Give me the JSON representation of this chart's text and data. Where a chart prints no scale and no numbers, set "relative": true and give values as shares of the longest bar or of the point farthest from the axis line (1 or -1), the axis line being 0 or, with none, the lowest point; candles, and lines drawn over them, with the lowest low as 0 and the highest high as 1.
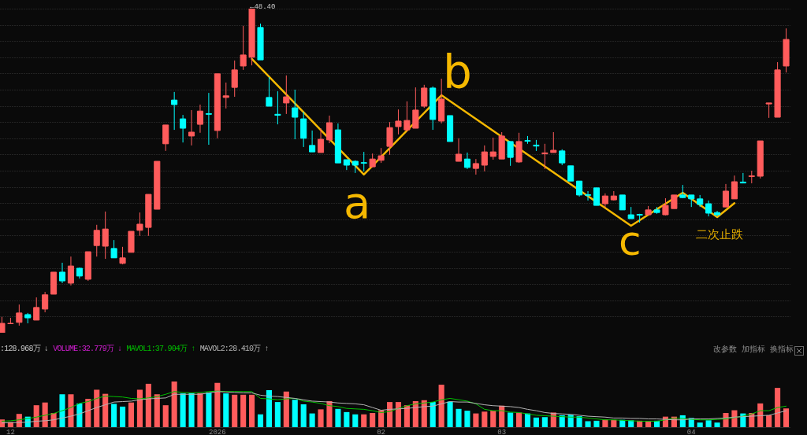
{
  "chart_data": [
    {
      "type": "candlestick",
      "relative": true,
      "grid": "y",
      "categories": [
        null,
        null,
        null,
        null,
        null,
        null,
        null,
        null,
        null,
        null,
        null,
        null,
        null,
        null,
        null,
        null,
        null,
        null,
        null,
        null,
        null,
        null,
        null,
        null,
        null,
        null,
        null,
        null,
        null,
        null,
        null,
        null,
        null,
        null,
        null,
        null,
        null,
        null,
        null,
        null,
        null,
        null,
        null,
        null,
        null,
        null,
        null,
        null,
        null,
        null,
        null,
        null,
        null,
        null,
        null,
        null,
        null,
        null,
        null,
        null,
        null,
        null,
        null,
        null,
        null,
        null,
        null,
        null,
        null,
        null,
        null,
        null,
        null,
        null,
        null,
        null,
        null,
        null,
        null,
        null,
        null,
        null,
        null,
        null,
        null,
        null,
        null,
        null,
        null,
        null,
        null,
        null
      ],
      "ohlc": [
        [
          0,
          0.049,
          0,
          0.029
        ],
        [
          0.028,
          0.046,
          0.027,
          0.029
        ],
        [
          0.032,
          0.087,
          0.022,
          0.061
        ],
        [
          0.056,
          0.061,
          0.029,
          0.046
        ],
        [
          0.039,
          0.109,
          0.039,
          0.078
        ],
        [
          0.073,
          0.126,
          0.063,
          0.117
        ],
        [
          0.119,
          0.187,
          0.119,
          0.187
        ],
        [
          0.187,
          0.216,
          0.153,
          0.16
        ],
        [
          0.153,
          0.235,
          0.146,
          0.206
        ],
        [
          0.199,
          0.201,
          0.167,
          0.175
        ],
        [
          0.165,
          0.25,
          0.16,
          0.25
        ],
        [
          0.269,
          0.333,
          0.235,
          0.316
        ],
        [
          0.267,
          0.374,
          0.228,
          0.32
        ],
        [
          0.26,
          0.286,
          0.231,
          0.231
        ],
        [
          0.214,
          0.265,
          0.211,
          0.231
        ],
        [
          0.248,
          0.313,
          0.248,
          0.313
        ],
        [
          0.316,
          0.371,
          0.299,
          0.335
        ],
        [
          0.325,
          0.427,
          0.299,
          0.427
        ],
        [
          0.381,
          0.529,
          0.381,
          0.529
        ],
        [
          0.583,
          0.641,
          0.561,
          0.641
        ],
        [
          0.718,
          0.743,
          0.626,
          0.704
        ],
        [
          0.66,
          0.672,
          0.587,
          0.631
        ],
        [
          0.607,
          0.687,
          0.578,
          0.619
        ],
        [
          0.643,
          0.704,
          0.617,
          0.684
        ],
        [
          0.676,
          0.74,
          0.58,
          0.674
        ],
        [
          0.624,
          0.799,
          0.6,
          0.799
        ],
        [
          0.726,
          0.772,
          0.692,
          0.731
        ],
        [
          0.757,
          0.84,
          0.728,
          0.811
        ],
        [
          0.823,
          0.947,
          0.811,
          0.857
        ],
        [
          0.85,
          1,
          0.825,
          1
        ],
        [
          0.942,
          0.954,
          0.842,
          0.842
        ],
        [
          0.726,
          0.789,
          0.699,
          0.699
        ],
        [
          0.674,
          0.745,
          0.643,
          0.671
        ],
        [
          0.709,
          0.794,
          0.675,
          0.728
        ],
        [
          0.694,
          0.75,
          0.597,
          0.665
        ],
        [
          0.66,
          0.682,
          0.573,
          0.6
        ],
        [
          0.578,
          0.624,
          0.558,
          0.558
        ],
        [
          0.556,
          0.631,
          0.556,
          0.597
        ],
        [
          0.595,
          0.67,
          0.585,
          0.648
        ],
        [
          0.626,
          0.646,
          0.524,
          0.524
        ],
        [
          0.534,
          0.534,
          0.502,
          0.517
        ],
        [
          0.529,
          0.532,
          0.493,
          0.517
        ],
        [
          0.525,
          0.558,
          0.498,
          0.523
        ],
        [
          0.512,
          0.553,
          0.51,
          0.536
        ],
        [
          0.532,
          0.57,
          0.524,
          0.546
        ],
        [
          0.575,
          0.65,
          0.549,
          0.633
        ],
        [
          0.636,
          0.689,
          0.612,
          0.653
        ],
        [
          0.626,
          0.714,
          0.621,
          0.655
        ],
        [
          0.631,
          0.757,
          0.631,
          0.687
        ],
        [
          0.699,
          0.765,
          0.694,
          0.755
        ],
        [
          0.755,
          0.76,
          0.626,
          0.658
        ],
        [
          0.653,
          0.784,
          0.646,
          0.721
        ],
        [
          0.67,
          0.67,
          0.59,
          0.59
        ],
        [
          0.529,
          0.6,
          0.529,
          0.551
        ],
        [
          0.536,
          0.556,
          0.505,
          0.51
        ],
        [
          0.507,
          0.536,
          0.488,
          0.522
        ],
        [
          0.517,
          0.578,
          0.498,
          0.558
        ],
        [
          0.544,
          0.602,
          0.534,
          0.558
        ],
        [
          0.536,
          0.619,
          0.536,
          0.607
        ],
        [
          0.59,
          0.59,
          0.515,
          0.541
        ],
        [
          0.527,
          0.617,
          0.524,
          0.59
        ],
        [
          0.593,
          0.607,
          0.583,
          0.591
        ],
        [
          0.579,
          0.595,
          0.561,
          0.576
        ],
        [
          0.552,
          0.583,
          0.505,
          0.555
        ],
        [
          0.556,
          0.619,
          0.556,
          0.563
        ],
        [
          0.561,
          0.566,
          0.517,
          0.524
        ],
        [
          0.515,
          0.515,
          0.468,
          0.468
        ],
        [
          0.468,
          0.468,
          0.42,
          0.425
        ],
        [
          0.426,
          0.437,
          0.408,
          0.424
        ],
        [
          0.447,
          0.447,
          0.393,
          0.393
        ],
        [
          0.398,
          0.43,
          0.386,
          0.422
        ],
        [
          0.41,
          0.437,
          0.408,
          0.422
        ],
        [
          0.425,
          0.425,
          0.379,
          0.379
        ],
        [
          0.364,
          0.388,
          0.352,
          0.352
        ],
        [
          0.365,
          0.367,
          0.34,
          0.363
        ],
        [
          0.364,
          0.391,
          0.364,
          0.379
        ],
        [
          0.379,
          0.388,
          0.367,
          0.371
        ],
        [
          0.364,
          0.415,
          0.362,
          0.393
        ],
        [
          0.383,
          0.425,
          0.383,
          0.425
        ],
        [
          0.425,
          0.456,
          0.415,
          0.417
        ],
        [
          0.425,
          0.425,
          0.388,
          0.413
        ],
        [
          0.413,
          0.425,
          0.388,
          0.396
        ],
        [
          0.398,
          0.408,
          0.359,
          0.369
        ],
        [
          0.371,
          0.376,
          0.359,
          0.364
        ],
        [
          0.388,
          0.459,
          0.388,
          0.437
        ],
        [
          0.413,
          0.485,
          0.413,
          0.466
        ],
        [
          0.465,
          0.493,
          0.461,
          0.462
        ],
        [
          0.482,
          0.5,
          0.461,
          0.484
        ],
        [
          0.483,
          0.592,
          0.476,
          0.592
        ],
        [
          0.706,
          0.709,
          0.663,
          0.709
        ],
        [
          0.665,
          0.835,
          0.665,
          0.811
        ],
        [
          0.823,
          0.939,
          0.803,
          0.905
        ]
      ],
      "colors": [
        "#ff5c5c",
        "#ff5c5c",
        "#ff5c5c",
        "#00ffff",
        "#ff5c5c",
        "#ff5c5c",
        "#ff5c5c",
        "#00ffff",
        "#ff5c5c",
        "#00ffff",
        "#ff5c5c",
        "#ff5c5c",
        "#ff5c5c",
        "#00ffff",
        "#ff5c5c",
        "#ff5c5c",
        "#ff5c5c",
        "#ff5c5c",
        "#ff5c5c",
        "#ff5c5c",
        "#00ffff",
        "#00ffff",
        "#ff5c5c",
        "#ff5c5c",
        "#00ffff",
        "#ff5c5c",
        "#ff5c5c",
        "#ff5c5c",
        "#ff5c5c",
        "#ff5c5c",
        "#00ffff",
        "#00ffff",
        "#00ffff",
        "#ff5c5c",
        "#00ffff",
        "#00ffff",
        "#00ffff",
        "#ff5c5c",
        "#ff5c5c",
        "#00ffff",
        "#00ffff",
        "#00ffff",
        "#00ffff",
        "#ff5c5c",
        "#ff5c5c",
        "#ff5c5c",
        "#ff5c5c",
        "#ff5c5c",
        "#ff5c5c",
        "#ff5c5c",
        "#00ffff",
        "#ff5c5c",
        "#00ffff",
        "#ff5c5c",
        "#00ffff",
        "#ff5c5c",
        "#ff5c5c",
        "#ff5c5c",
        "#ff5c5c",
        "#00ffff",
        "#ff5c5c",
        "#00ffff",
        "#00ffff",
        "#ff5c5c",
        "#ff5c5c",
        "#00ffff",
        "#00ffff",
        "#00ffff",
        "#00ffff",
        "#00ffff",
        "#ff5c5c",
        "#ff5c5c",
        "#00ffff",
        "#00ffff",
        "#00ffff",
        "#ff5c5c",
        "#00ffff",
        "#ff5c5c",
        "#ff5c5c",
        "#00ffff",
        "#00ffff",
        "#00ffff",
        "#00ffff",
        "#00ffff",
        "#ff5c5c",
        "#ff5c5c",
        "#00ffff",
        "#ff5c5c",
        "#ff5c5c",
        "#ff5c5c",
        "#ff5c5c",
        "#ff5c5c"
      ],
      "series": [
        {
          "type": "line",
          "color": "#f5b800",
          "values": [
            null,
            null,
            null,
            null,
            null,
            null,
            null,
            null,
            null,
            null,
            null,
            null,
            null,
            null,
            null,
            null,
            null,
            null,
            null,
            null,
            null,
            null,
            null,
            null,
            null,
            null,
            null,
            null,
            null,
            0.845,
            null,
            null,
            null,
            null,
            null,
            null,
            null,
            null,
            null,
            null,
            null,
            null,
            0.488,
            null,
            null,
            null,
            null,
            null,
            null,
            null,
            null,
            0.733,
            null,
            null,
            null,
            null,
            null,
            null,
            null,
            null,
            null,
            null,
            null,
            null,
            null,
            null,
            null,
            null,
            null,
            null,
            null,
            null,
            null,
            0.33,
            null,
            null,
            null,
            null,
            null,
            0.432,
            null,
            null,
            null,
            0.357,
            null,
            0.4,
            null,
            null,
            null,
            null,
            null,
            null
          ]
        }
      ],
      "annotations": [
        "←48.40",
        "a",
        "b",
        "c",
        "二次止跌"
      ]
    },
    {
      "type": "bar",
      "relative": true,
      "legend": "top left",
      "categories": [
        null,
        "12",
        null,
        null,
        null,
        null,
        null,
        null,
        null,
        null,
        null,
        null,
        null,
        null,
        null,
        null,
        null,
        null,
        null,
        null,
        null,
        null,
        null,
        null,
        null,
        "2026",
        null,
        null,
        null,
        null,
        null,
        null,
        null,
        null,
        null,
        null,
        null,
        null,
        null,
        null,
        null,
        null,
        null,
        null,
        "02",
        null,
        null,
        null,
        null,
        null,
        null,
        null,
        null,
        null,
        null,
        null,
        null,
        null,
        "03",
        null,
        null,
        null,
        null,
        null,
        null,
        null,
        null,
        null,
        null,
        null,
        null,
        null,
        null,
        null,
        null,
        null,
        null,
        null,
        null,
        null,
        "04",
        null,
        null,
        null,
        null,
        null,
        null,
        null,
        null,
        null,
        null,
        null
      ],
      "series": [
        {
          "colors": [
            "#ff5c5c",
            "#ff5c5c",
            "#ff5c5c",
            "#00ffff",
            "#ff5c5c",
            "#ff5c5c",
            "#ff5c5c",
            "#00ffff",
            "#ff5c5c",
            "#00ffff",
            "#ff5c5c",
            "#ff5c5c",
            "#ff5c5c",
            "#00ffff",
            "#00ffff",
            "#ff5c5c",
            "#ff5c5c",
            "#ff5c5c",
            "#ff5c5c",
            "#ff5c5c",
            "#ff5c5c",
            "#00ffff",
            "#00ffff",
            "#ff5c5c",
            "#00ffff",
            "#ff5c5c",
            "#00ffff",
            "#ff5c5c",
            "#ff5c5c",
            "#ff5c5c",
            "#00ffff",
            "#00ffff",
            "#00ffff",
            "#ff5c5c",
            "#00ffff",
            "#00ffff",
            "#00ffff",
            "#ff5c5c",
            "#ff5c5c",
            "#00ffff",
            "#00ffff",
            "#00ffff",
            "#ff5c5c",
            "#ff5c5c",
            "#ff5c5c",
            "#ff5c5c",
            "#ff5c5c",
            "#ff5c5c",
            "#ff5c5c",
            "#ff5c5c",
            "#00ffff",
            "#ff5c5c",
            "#00ffff",
            "#00ffff",
            "#00ffff",
            "#ff5c5c",
            "#ff5c5c",
            "#ff5c5c",
            "#ff5c5c",
            "#00ffff",
            "#ff5c5c",
            "#00ffff",
            "#00ffff",
            "#00ffff",
            "#ff5c5c",
            "#00ffff",
            "#00ffff",
            "#00ffff",
            "#00ffff",
            "#00ffff",
            "#ff5c5c",
            "#ff5c5c",
            "#00ffff",
            "#00ffff",
            "#ff5c5c",
            "#ff5c5c",
            "#00ffff",
            "#ff5c5c",
            "#ff5c5c",
            "#00ffff",
            "#00ffff",
            "#00ffff",
            "#00ffff",
            "#00ffff",
            "#ff5c5c",
            "#ff5c5c",
            "#00ffff",
            "#ff5c5c",
            "#ff5c5c",
            "#ff5c5c",
            "#ff5c5c",
            "#ff5c5c"
          ],
          "values": [
            0.17,
            0.11,
            0.29,
            0.23,
            0.48,
            0.54,
            0.31,
            0.72,
            0.72,
            0.52,
            0.62,
            0.82,
            0.73,
            0.51,
            0.45,
            0.54,
            0.82,
            0.95,
            0.72,
            0.48,
            1,
            0.74,
            0.75,
            0.74,
            0.76,
            0.97,
            0.74,
            0.71,
            0.71,
            0.71,
            0.28,
            0.81,
            0.55,
            0.78,
            0.6,
            0.5,
            0.3,
            0.39,
            0.57,
            0.4,
            0.33,
            0.28,
            0.28,
            0.31,
            0.37,
            0.55,
            0.55,
            0.48,
            0.57,
            0.59,
            0.55,
            0.93,
            0.56,
            0.4,
            0.36,
            0.3,
            0.34,
            0.36,
            0.47,
            0.32,
            0.32,
            0.3,
            0.21,
            0.22,
            0.32,
            0.26,
            0.27,
            0.24,
            0.13,
            0.14,
            0.17,
            0.16,
            0.16,
            0.15,
            0.14,
            0.13,
            0.14,
            0.23,
            0.23,
            0.26,
            0.2,
            0.1,
            0.15,
            0.1,
            0.31,
            0.37,
            0.3,
            0.31,
            0.52,
            0.26,
            0.86,
            0.41
          ]
        },
        {
          "type": "line",
          "name": "MAVOL1:37.904万 ↑",
          "color": "#00c000",
          "values": [
            0.13,
            0.14,
            0.16,
            0.19,
            0.22,
            0.26,
            0.3,
            0.36,
            0.43,
            0.52,
            0.56,
            0.63,
            0.68,
            0.67,
            0.66,
            0.63,
            0.62,
            0.64,
            0.67,
            0.72,
            0.78,
            0.76,
            0.75,
            0.76,
            0.78,
            0.79,
            0.78,
            0.78,
            0.78,
            0.78,
            0.63,
            0.62,
            0.6,
            0.62,
            0.63,
            0.57,
            0.55,
            0.52,
            0.47,
            0.45,
            0.41,
            0.4,
            0.39,
            0.36,
            0.32,
            0.34,
            0.41,
            0.47,
            0.51,
            0.53,
            0.55,
            0.6,
            0.63,
            0.6,
            0.57,
            0.51,
            0.39,
            0.36,
            0.36,
            0.33,
            0.32,
            0.29,
            0.26,
            0.25,
            0.24,
            0.23,
            0.22,
            0.22,
            0.2,
            0.18,
            0.16,
            0.16,
            0.15,
            0.14,
            0.13,
            0.13,
            0.13,
            0.16,
            0.2,
            0.19,
            0.17,
            0.16,
            0.16,
            0.17,
            0.18,
            0.21,
            0.24,
            0.29,
            0.36,
            0.36,
            0.43,
            0.46
          ]
        },
        {
          "type": "line",
          "name": "MAVOL2:28.410万 ↑",
          "color": "#b4b4b4",
          "values": [
            0.09,
            0.1,
            0.1,
            0.11,
            0.13,
            0.14,
            0.16,
            0.2,
            0.24,
            0.29,
            0.36,
            0.43,
            0.49,
            0.55,
            0.56,
            0.57,
            0.6,
            0.62,
            0.63,
            0.64,
            0.72,
            0.72,
            0.72,
            0.72,
            0.75,
            0.78,
            0.77,
            0.76,
            0.75,
            0.75,
            0.7,
            0.68,
            0.67,
            0.65,
            0.63,
            0.6,
            0.57,
            0.56,
            0.55,
            0.53,
            0.52,
            0.51,
            0.49,
            0.43,
            0.37,
            0.39,
            0.4,
            0.41,
            0.43,
            0.45,
            0.46,
            0.51,
            0.56,
            0.55,
            0.55,
            0.52,
            0.49,
            0.47,
            0.46,
            0.45,
            0.43,
            0.39,
            0.36,
            0.32,
            0.3,
            0.29,
            0.28,
            0.26,
            0.24,
            0.23,
            0.22,
            0.2,
            0.2,
            0.19,
            0.19,
            0.18,
            0.18,
            0.17,
            0.16,
            0.16,
            0.18,
            0.18,
            0.18,
            0.19,
            0.2,
            0.22,
            0.23,
            0.24,
            0.25,
            0.26,
            0.31,
            0.36
          ]
        }
      ],
      "annotations": [
        ":128.968万 ↓",
        "VOLUME:32.779万 ↓",
        "改参数",
        "加指标",
        "换指标"
      ]
    }
  ]
}
